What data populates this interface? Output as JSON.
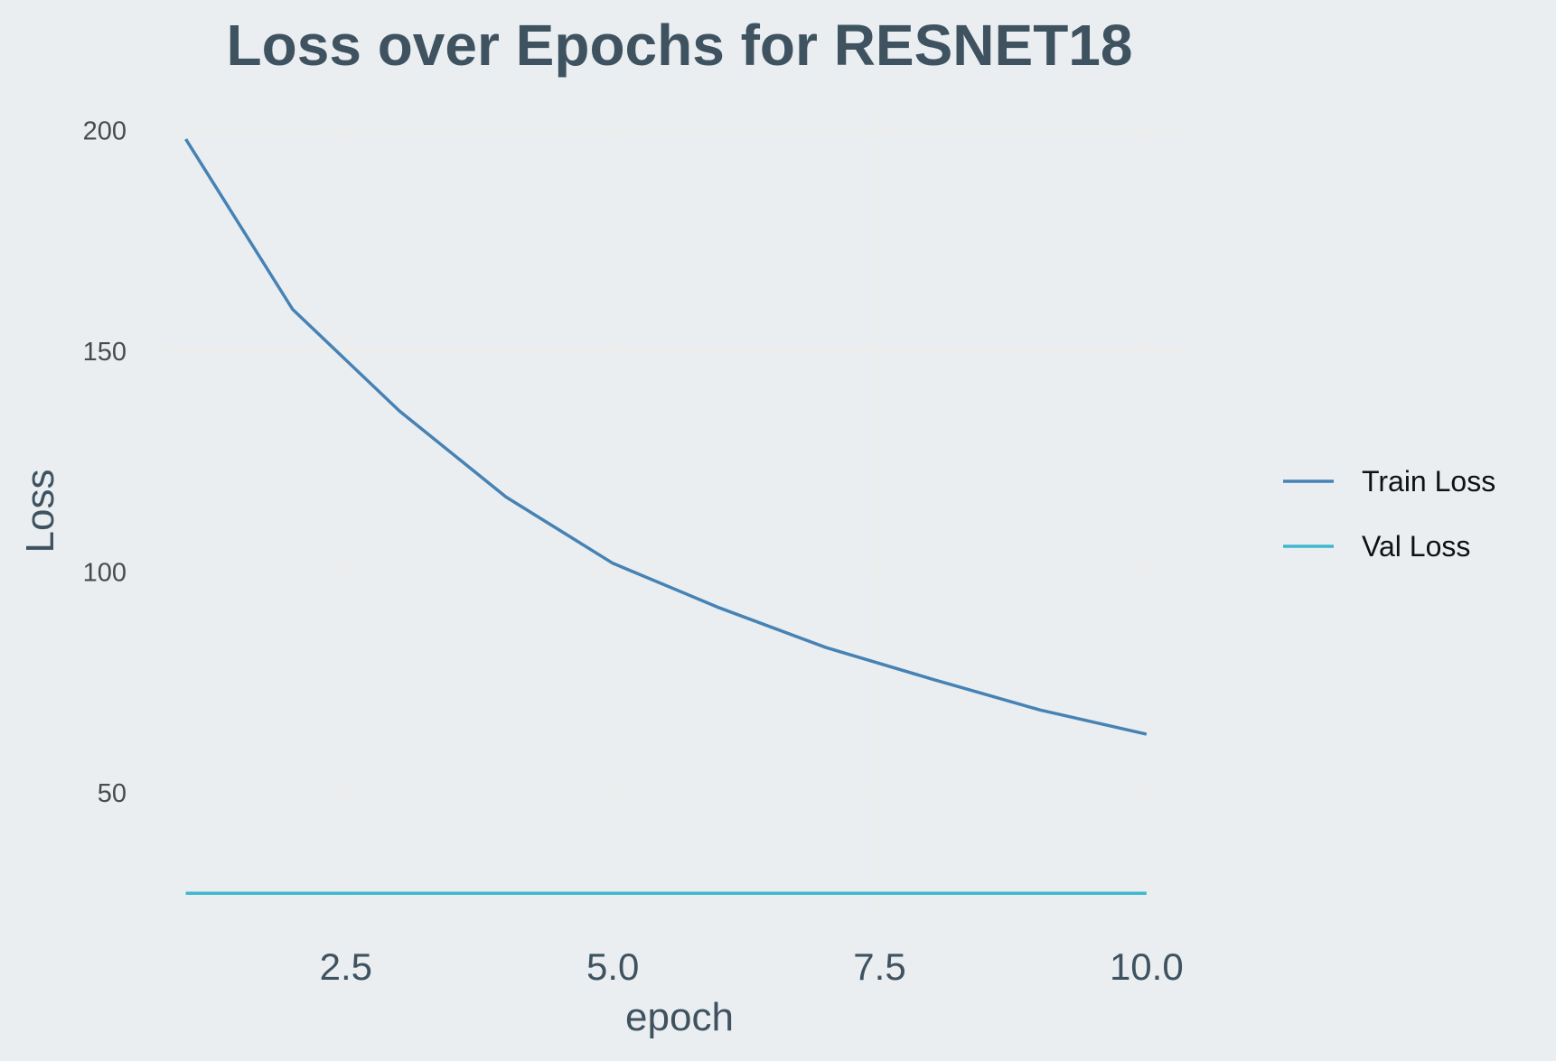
{
  "chart_data": {
    "type": "line",
    "title": "Loss over Epochs for RESNET18",
    "xlabel": "epoch",
    "ylabel": "Loss",
    "xlim": [
      0.8,
      10.45
    ],
    "ylim": [
      21,
      206
    ],
    "xticks": [
      2.5,
      5.0,
      7.5,
      10.0
    ],
    "xtick_labels": [
      "2.5",
      "5.0",
      "7.5",
      "10.0"
    ],
    "yticks": [
      50,
      100,
      150,
      200
    ],
    "ytick_labels": [
      "50",
      "100",
      "150",
      "200"
    ],
    "grid": true,
    "legend_position": "right",
    "x": [
      1,
      2,
      3,
      4,
      5,
      6,
      7,
      8,
      9,
      10
    ],
    "series": [
      {
        "name": "Train Loss",
        "color": "#4682b4",
        "values": [
          198.0,
          159.5,
          136.5,
          117.0,
          102.0,
          91.9,
          82.9,
          75.7,
          68.8,
          63.3
        ]
      },
      {
        "name": "Val Loss",
        "color": "#3fb7cf",
        "values": [
          27.3,
          27.3,
          27.3,
          27.3,
          27.3,
          27.3,
          27.3,
          27.3,
          27.3,
          27.3
        ]
      }
    ]
  }
}
